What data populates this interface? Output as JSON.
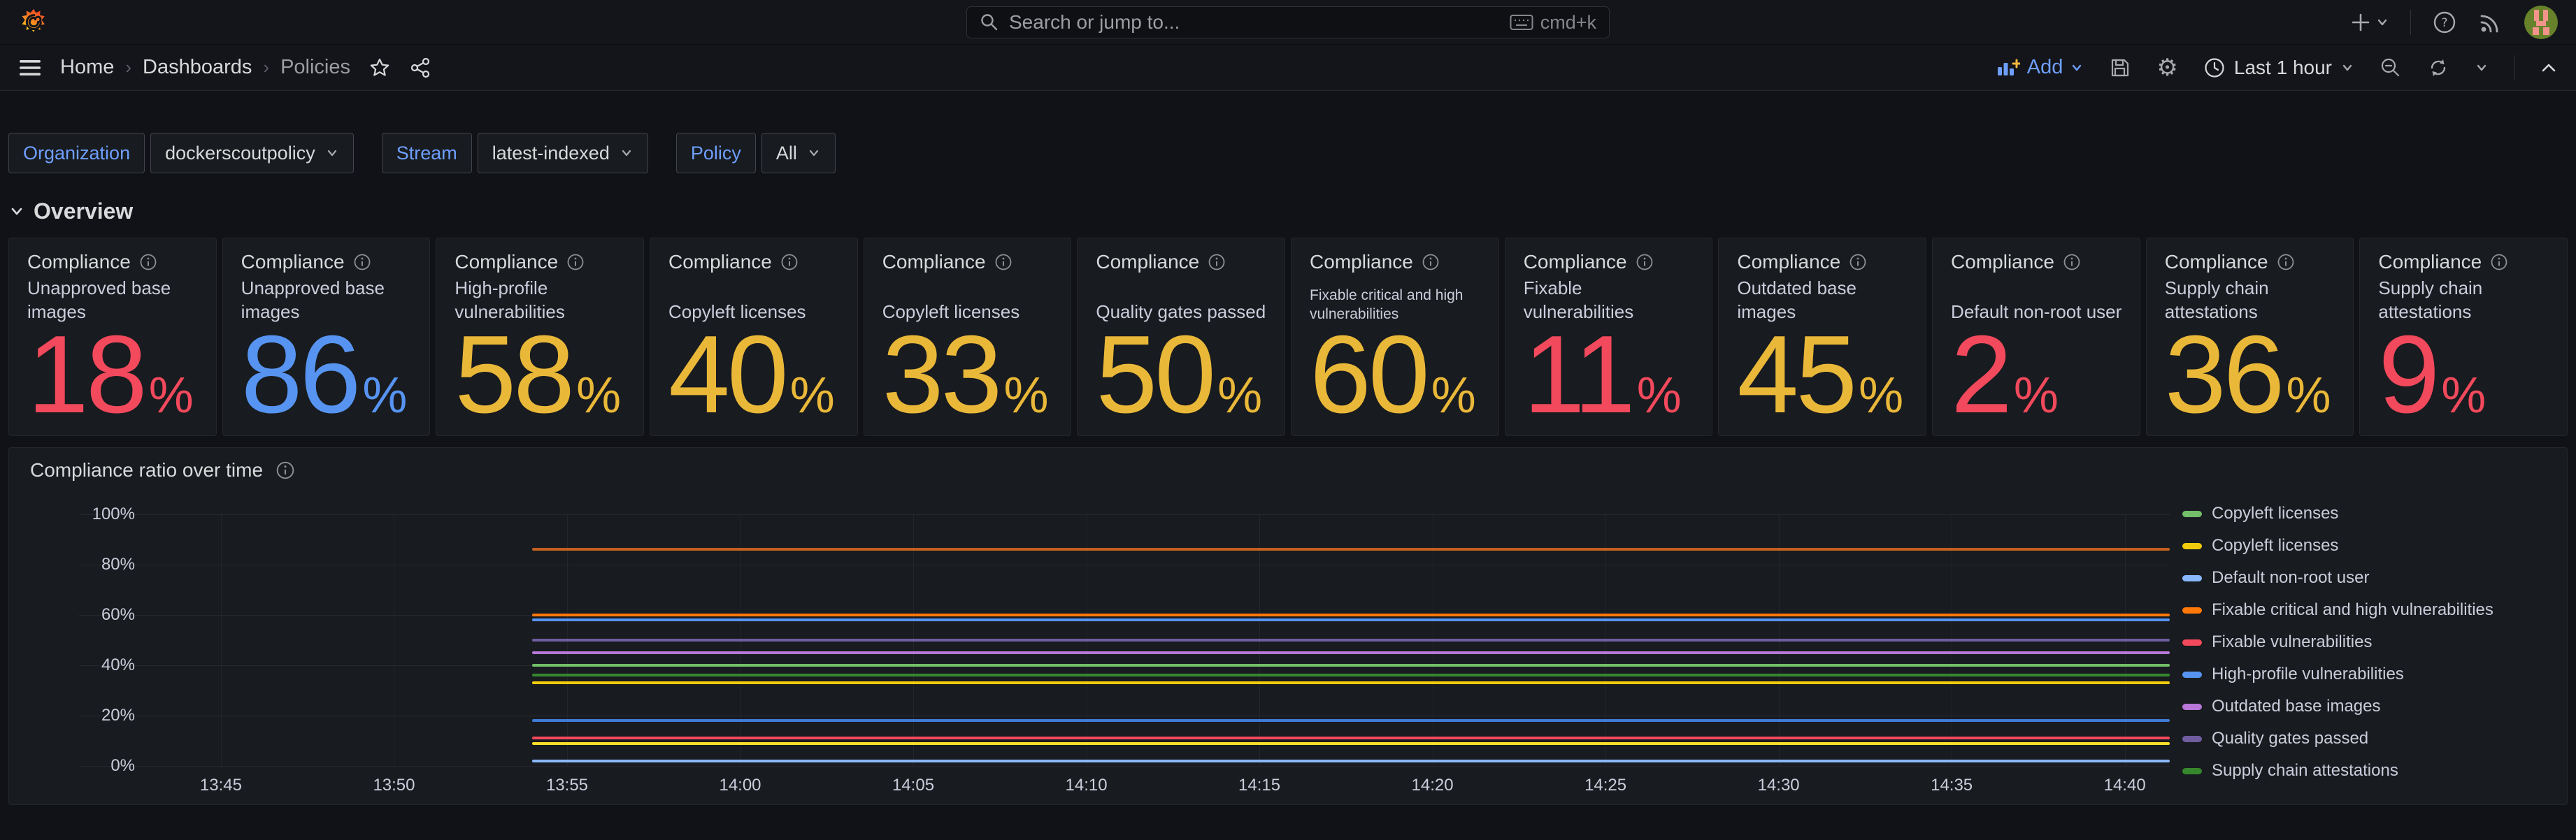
{
  "theme": {
    "background": "#111217",
    "panel_background": "#181B1F",
    "accent_blue": "#6E9FFF",
    "text_primary": "#D8D9DA",
    "text_secondary": "#CCCCDC",
    "value_red": "#F2495C",
    "value_blue": "#5794F2",
    "value_yellow": "#EAB839"
  },
  "topbar": {
    "search_placeholder": "Search or jump to...",
    "shortcut": "cmd+k"
  },
  "nav": {
    "breadcrumbs": [
      {
        "label": "Home"
      },
      {
        "label": "Dashboards"
      },
      {
        "label": "Policies"
      }
    ],
    "add_label": "Add",
    "time_range": "Last 1 hour"
  },
  "filters": [
    {
      "label": "Organization",
      "value": "dockerscoutpolicy"
    },
    {
      "label": "Stream",
      "value": "latest-indexed"
    },
    {
      "label": "Policy",
      "value": "All"
    }
  ],
  "section_title": "Overview",
  "stat_panels": [
    {
      "title": "Compliance",
      "subtitle": "Unapproved base images",
      "value": "18",
      "unit": "%",
      "color": "#F2495C",
      "small": false
    },
    {
      "title": "Compliance",
      "subtitle": "Unapproved base images",
      "value": "86",
      "unit": "%",
      "color": "#5794F2",
      "small": false
    },
    {
      "title": "Compliance",
      "subtitle": "High-profile vulnerabilities",
      "value": "58",
      "unit": "%",
      "color": "#EAB839",
      "small": false
    },
    {
      "title": "Compliance",
      "subtitle": "Copyleft licenses",
      "value": "40",
      "unit": "%",
      "color": "#EAB839",
      "small": false
    },
    {
      "title": "Compliance",
      "subtitle": "Copyleft licenses",
      "value": "33",
      "unit": "%",
      "color": "#EAB839",
      "small": false
    },
    {
      "title": "Compliance",
      "subtitle": "Quality gates passed",
      "value": "50",
      "unit": "%",
      "color": "#EAB839",
      "small": false
    },
    {
      "title": "Compliance",
      "subtitle": "Fixable critical and high vulnerabilities",
      "value": "60",
      "unit": "%",
      "color": "#EAB839",
      "small": true
    },
    {
      "title": "Compliance",
      "subtitle": "Fixable vulnerabilities",
      "value": "11",
      "unit": "%",
      "color": "#F2495C",
      "small": false
    },
    {
      "title": "Compliance",
      "subtitle": "Outdated base images",
      "value": "45",
      "unit": "%",
      "color": "#EAB839",
      "small": false
    },
    {
      "title": "Compliance",
      "subtitle": "Default non-root user",
      "value": "2",
      "unit": "%",
      "color": "#F2495C",
      "small": false
    },
    {
      "title": "Compliance",
      "subtitle": "Supply chain attestations",
      "value": "36",
      "unit": "%",
      "color": "#EAB839",
      "small": false
    },
    {
      "title": "Compliance",
      "subtitle": "Supply chain attestations",
      "value": "9",
      "unit": "%",
      "color": "#F2495C",
      "small": false
    }
  ],
  "chart_data": {
    "type": "line",
    "title": "Compliance ratio over time",
    "xlabel": "",
    "ylabel": "",
    "grid": true,
    "x_axis": {
      "min_minutes": 820.9,
      "max_minutes": 881.3,
      "ticks": [
        {
          "m": 825,
          "label": "13:45"
        },
        {
          "m": 830,
          "label": "13:50"
        },
        {
          "m": 835,
          "label": "13:55"
        },
        {
          "m": 840,
          "label": "14:00"
        },
        {
          "m": 845,
          "label": "14:05"
        },
        {
          "m": 850,
          "label": "14:10"
        },
        {
          "m": 855,
          "label": "14:15"
        },
        {
          "m": 860,
          "label": "14:20"
        },
        {
          "m": 865,
          "label": "14:25"
        },
        {
          "m": 870,
          "label": "14:30"
        },
        {
          "m": 875,
          "label": "14:35"
        },
        {
          "m": 880,
          "label": "14:40"
        }
      ]
    },
    "y_axis": {
      "min": 0,
      "max": 100,
      "unit": "%",
      "ticks": [
        0,
        20,
        40,
        60,
        80,
        100
      ]
    },
    "series": [
      {
        "name": "Unapproved base images",
        "value": 86,
        "color": "#C4601D",
        "start": "13:54",
        "end": "14:41",
        "start_minutes": 834
      },
      {
        "name": "Fixable critical and high vulnerabilities",
        "value": 60,
        "color": "#FF780A",
        "start": "13:54",
        "end": "14:41",
        "start_minutes": 834
      },
      {
        "name": "High-profile vulnerabilities",
        "value": 58,
        "color": "#5794F2",
        "start": "13:54",
        "end": "14:41",
        "start_minutes": 834
      },
      {
        "name": "Quality gates passed",
        "value": 50,
        "color": "#705DA0",
        "start": "13:54",
        "end": "14:41",
        "start_minutes": 834
      },
      {
        "name": "Outdated base images",
        "value": 45,
        "color": "#B877D9",
        "start": "13:54",
        "end": "14:41",
        "start_minutes": 834
      },
      {
        "name": "Copyleft licenses",
        "value": 40,
        "color": "#73BF69",
        "start": "13:54",
        "end": "14:41",
        "start_minutes": 834
      },
      {
        "name": "Supply chain attestations",
        "value": 36,
        "color": "#37872D",
        "start": "13:54",
        "end": "14:41",
        "start_minutes": 834
      },
      {
        "name": "Copyleft licenses",
        "value": 33,
        "color": "#F2CC0C",
        "start": "13:54",
        "end": "14:41",
        "start_minutes": 834
      },
      {
        "name": "Unapproved base images",
        "value": 18,
        "color": "#3E7CD6",
        "start": "13:54",
        "end": "14:41",
        "start_minutes": 834
      },
      {
        "name": "Fixable vulnerabilities",
        "value": 11,
        "color": "#F2495C",
        "start": "13:54",
        "end": "14:41",
        "start_minutes": 834
      },
      {
        "name": "Supply chain attestations",
        "value": 9,
        "color": "#FADE2A",
        "start": "13:54",
        "end": "14:41",
        "start_minutes": 834
      },
      {
        "name": "Default non-root user",
        "value": 2,
        "color": "#8AB8FF",
        "start": "13:54",
        "end": "14:41",
        "start_minutes": 834
      }
    ],
    "legend": {
      "position": "right",
      "items": [
        {
          "label": "Copyleft licenses",
          "color": "#73BF69"
        },
        {
          "label": "Copyleft licenses",
          "color": "#F2CC0C"
        },
        {
          "label": "Default non-root user",
          "color": "#8AB8FF"
        },
        {
          "label": "Fixable critical and high vulnerabilities",
          "color": "#FF780A"
        },
        {
          "label": "Fixable vulnerabilities",
          "color": "#F2495C"
        },
        {
          "label": "High-profile vulnerabilities",
          "color": "#5794F2"
        },
        {
          "label": "Outdated base images",
          "color": "#B877D9"
        },
        {
          "label": "Quality gates passed",
          "color": "#705DA0"
        },
        {
          "label": "Supply chain attestations",
          "color": "#37872D"
        }
      ]
    }
  }
}
